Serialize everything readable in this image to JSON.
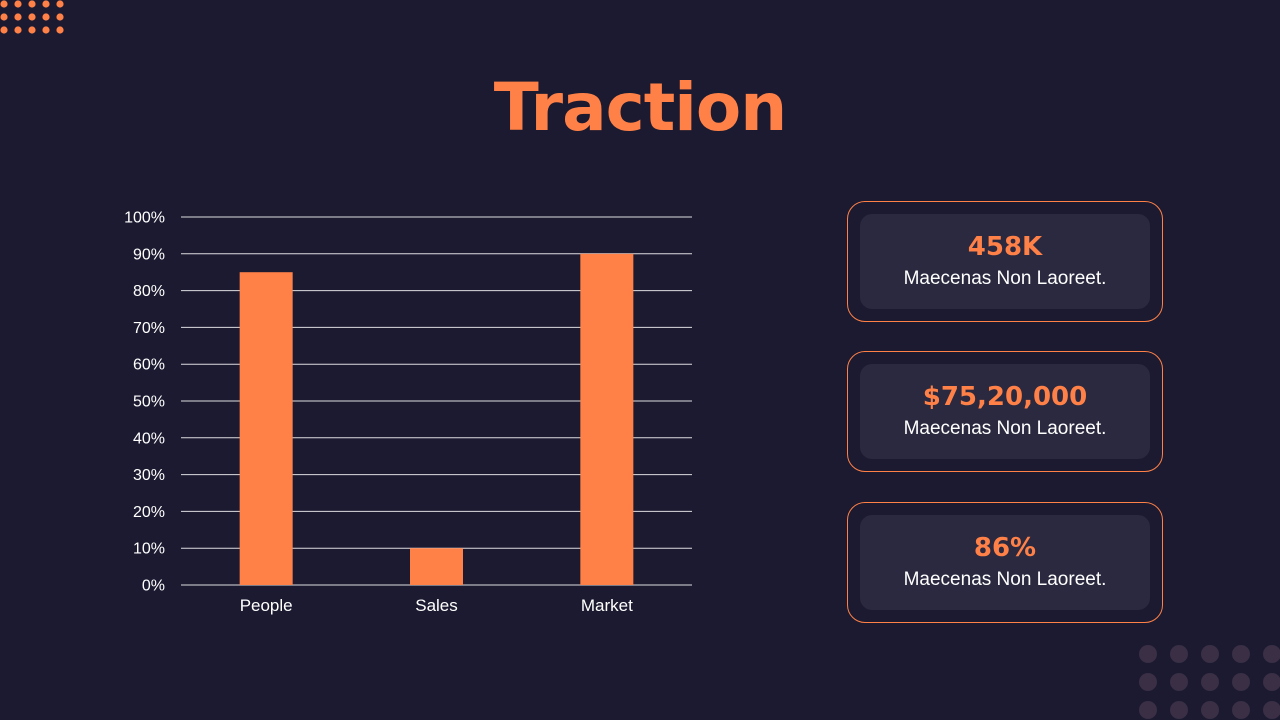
{
  "colors": {
    "background": "#1c1a30",
    "accent": "#ff8147",
    "text": "#ffffff",
    "card_inner": "#2a2940",
    "gridline": "#ffffff",
    "dots_bottom": "#3a2f45"
  },
  "slide": {
    "title": "Traction"
  },
  "chart_data": {
    "type": "bar",
    "categories": [
      "People",
      "Sales",
      "Market"
    ],
    "values": [
      85,
      10,
      90
    ],
    "ylim": [
      0,
      100
    ],
    "yticks": [
      "0%",
      "10%",
      "20%",
      "30%",
      "40%",
      "50%",
      "60%",
      "70%",
      "80%",
      "90%",
      "100%"
    ],
    "grid": true,
    "legend": "none",
    "title": "",
    "xlabel": "",
    "ylabel": ""
  },
  "stats": [
    {
      "value": "458K",
      "caption": "Maecenas Non Laoreet."
    },
    {
      "value": "$75,20,000",
      "caption": "Maecenas Non Laoreet."
    },
    {
      "value": "86%",
      "caption": "Maecenas Non Laoreet."
    }
  ]
}
